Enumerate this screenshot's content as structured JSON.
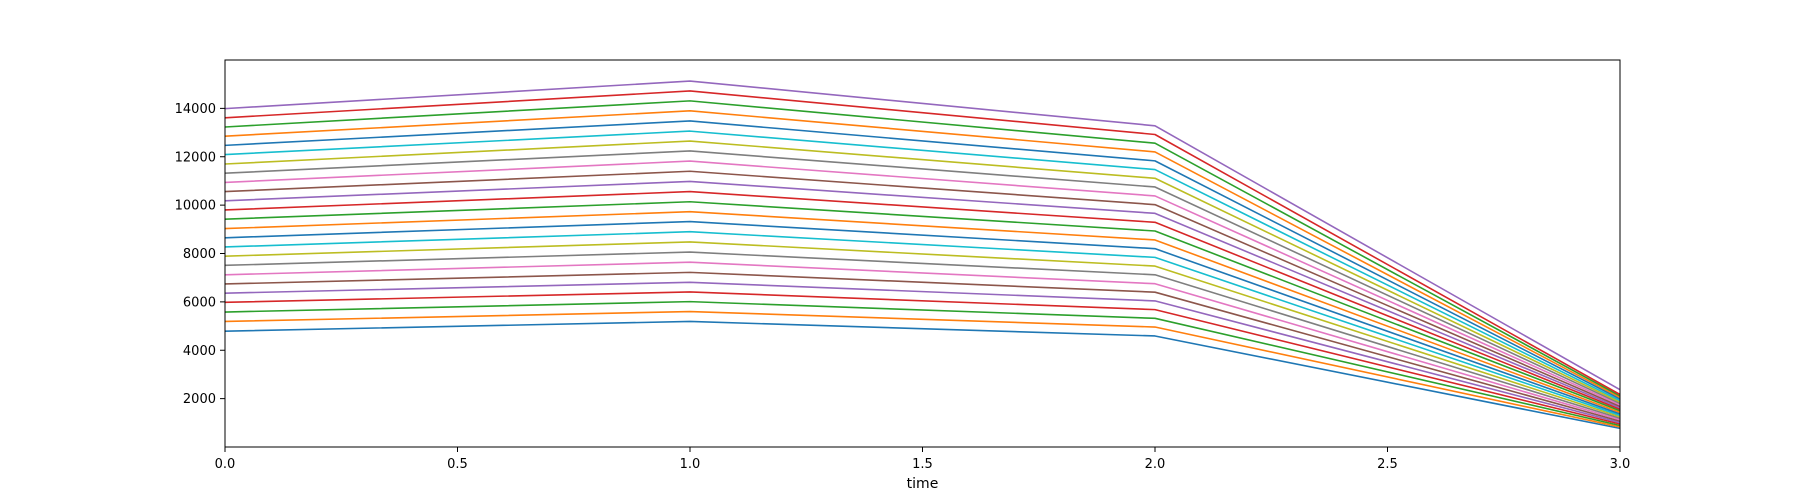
{
  "chart_data": {
    "type": "line",
    "title": "",
    "xlabel": "time",
    "ylabel": "",
    "xlim": [
      0.0,
      3.0
    ],
    "ylim": [
      0,
      16000
    ],
    "x": [
      0,
      1,
      2,
      3
    ],
    "x_ticks": [
      "0.0",
      "0.5",
      "1.0",
      "1.5",
      "2.0",
      "2.5",
      "3.0"
    ],
    "x_tick_values": [
      0.0,
      0.5,
      1.0,
      1.5,
      2.0,
      2.5,
      3.0
    ],
    "y_ticks": [
      "2000",
      "4000",
      "6000",
      "8000",
      "10000",
      "12000",
      "14000"
    ],
    "y_tick_values": [
      2000,
      4000,
      6000,
      8000,
      10000,
      12000,
      14000
    ],
    "grid": false,
    "legend": "none",
    "series": [
      {
        "values": [
          4790,
          5190,
          4590,
          770
        ],
        "color": "#1f77b4"
      },
      {
        "values": [
          5190,
          5600,
          4960,
          830
        ],
        "color": "#ff7f0e"
      },
      {
        "values": [
          5580,
          6010,
          5320,
          890
        ],
        "color": "#2ca02c"
      },
      {
        "values": [
          5980,
          6410,
          5680,
          950
        ],
        "color": "#d62728"
      },
      {
        "values": [
          6360,
          6810,
          6040,
          1010
        ],
        "color": "#9467bd"
      },
      {
        "values": [
          6740,
          7220,
          6400,
          1070
        ],
        "color": "#8c564b"
      },
      {
        "values": [
          7120,
          7640,
          6750,
          1130
        ],
        "color": "#e377c2"
      },
      {
        "values": [
          7510,
          8060,
          7120,
          1190
        ],
        "color": "#7f7f7f"
      },
      {
        "values": [
          7890,
          8480,
          7480,
          1250
        ],
        "color": "#bcbd22"
      },
      {
        "values": [
          8270,
          8900,
          7840,
          1310
        ],
        "color": "#17becf"
      },
      {
        "values": [
          8650,
          9320,
          8200,
          1370
        ],
        "color": "#1f77b4"
      },
      {
        "values": [
          9030,
          9730,
          8560,
          1430
        ],
        "color": "#ff7f0e"
      },
      {
        "values": [
          9420,
          10140,
          8930,
          1500
        ],
        "color": "#2ca02c"
      },
      {
        "values": [
          9800,
          10560,
          9290,
          1560
        ],
        "color": "#d62728"
      },
      {
        "values": [
          10180,
          10980,
          9660,
          1620
        ],
        "color": "#9467bd"
      },
      {
        "values": [
          10560,
          11400,
          10020,
          1680
        ],
        "color": "#8c564b"
      },
      {
        "values": [
          10940,
          11820,
          10380,
          1740
        ],
        "color": "#e377c2"
      },
      {
        "values": [
          11320,
          12240,
          10750,
          1800
        ],
        "color": "#7f7f7f"
      },
      {
        "values": [
          11700,
          12650,
          11110,
          1860
        ],
        "color": "#bcbd22"
      },
      {
        "values": [
          12090,
          13060,
          11470,
          1920
        ],
        "color": "#17becf"
      },
      {
        "values": [
          12470,
          13480,
          11830,
          1990
        ],
        "color": "#1f77b4"
      },
      {
        "values": [
          12850,
          13900,
          12200,
          2050
        ],
        "color": "#ff7f0e"
      },
      {
        "values": [
          13230,
          14310,
          12560,
          2110
        ],
        "color": "#2ca02c"
      },
      {
        "values": [
          13610,
          14720,
          12920,
          2170
        ],
        "color": "#d62728"
      },
      {
        "values": [
          13990,
          15130,
          13280,
          2370
        ],
        "color": "#9467bd"
      }
    ]
  }
}
